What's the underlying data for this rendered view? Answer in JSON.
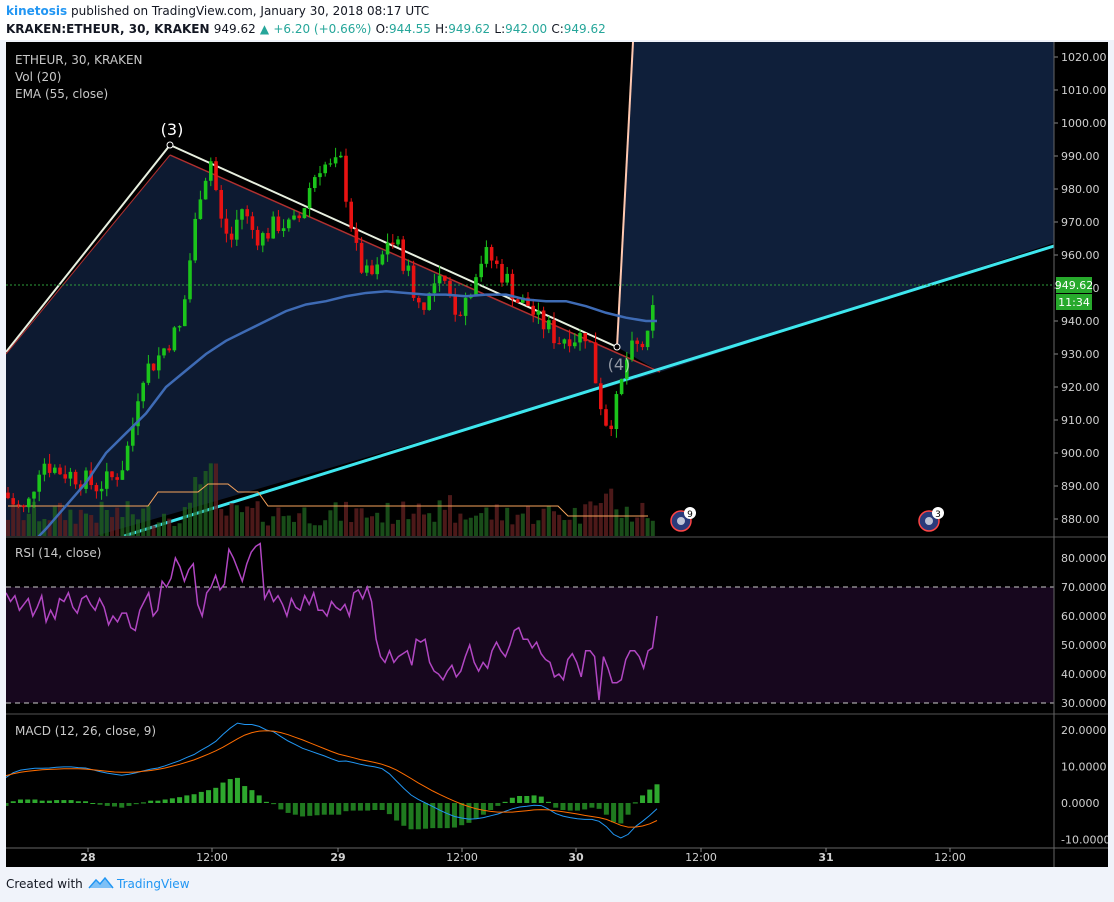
{
  "header": {
    "author": "kinetosis",
    "published": "published on TradingView.com, January 30, 2018 08:17 UTC",
    "symbol": "KRAKEN:ETHEUR, 30, KRAKEN",
    "last": "949.62",
    "change": "+6.20 (+0.66%)",
    "o_label": "O:",
    "o": "944.55",
    "h_label": "H:",
    "h": "949.62",
    "l_label": "L:",
    "l": "942.00",
    "c_label": "C:",
    "c": "949.62"
  },
  "legends": {
    "main": [
      "ETHEUR, 30, KRAKEN",
      "Vol (20)",
      "EMA (55, close)"
    ],
    "rsi": "RSI (14, close)",
    "macd": "MACD (12, 26, close, 9)"
  },
  "annotations": {
    "wave3": "(3)",
    "wave4": "(4)",
    "event1": "9",
    "event2": "3"
  },
  "price_tag": {
    "price": "949.62",
    "countdown": "11:34"
  },
  "footer": {
    "created": "Created with",
    "brand": "TradingView"
  },
  "colors": {
    "up": "#26a69a",
    "down": "#ef5350",
    "candle_up": "#1bc41b",
    "candle_down": "#e81212",
    "ema": "#3e6bb5",
    "rsi": "#b146c2",
    "macd": "#2196f3",
    "signal": "#ff6d00",
    "trendline": "#3ee6ee"
  },
  "chart_data": {
    "type": "candlestick",
    "x_ticks": [
      "28",
      "12:00",
      "29",
      "12:00",
      "30",
      "12:00",
      "31",
      "12:00"
    ],
    "price_axis": {
      "ticks": [
        880,
        890,
        900,
        910,
        920,
        930,
        940,
        950,
        960,
        970,
        980,
        990,
        1000,
        1010,
        1020
      ],
      "range": [
        873,
        1023
      ],
      "last": 949.62
    },
    "rsi": {
      "ticks": [
        "30.0000",
        "40.0000",
        "50.0000",
        "60.0000",
        "70.0000",
        "80.0000"
      ],
      "bands": [
        30,
        70
      ],
      "range": [
        28,
        86
      ],
      "values": [
        68,
        65,
        67,
        62,
        64,
        66,
        60,
        63,
        67,
        58,
        62,
        59,
        66,
        65,
        68,
        63,
        61,
        66,
        67,
        64,
        62,
        66,
        63,
        57,
        60,
        58,
        61,
        61,
        56,
        55,
        62,
        65,
        68,
        60,
        62,
        72,
        70,
        73,
        80,
        77,
        72,
        76,
        78,
        64,
        60,
        68,
        70,
        74,
        69,
        71,
        83,
        80,
        76,
        72,
        78,
        82,
        84,
        85,
        66,
        69,
        65,
        67,
        64,
        60,
        66,
        63,
        62,
        67,
        64,
        68,
        62,
        62,
        60,
        65,
        63,
        62,
        64,
        60,
        68,
        69,
        66,
        70,
        65,
        52,
        46,
        44,
        48,
        44,
        46,
        47,
        48,
        43,
        52,
        51,
        52,
        44,
        41,
        40,
        38,
        41,
        43,
        39,
        41,
        46,
        50,
        44,
        41,
        44,
        42,
        48,
        51,
        48,
        46,
        50,
        55,
        56,
        52,
        52,
        49,
        51,
        47,
        45,
        44,
        39,
        40,
        38,
        45,
        47,
        44,
        39,
        48,
        48,
        46,
        31,
        46,
        42,
        37,
        37,
        38,
        45,
        48,
        48,
        46,
        42,
        48,
        49,
        60
      ]
    },
    "macd": {
      "ticks": [
        "-10.0000",
        "0.0000",
        "10.0000",
        "20.0000"
      ],
      "range": [
        -11,
        24
      ],
      "macd": [
        7,
        8.3,
        9,
        9.3,
        9.5,
        9.5,
        9.6,
        9.8,
        9.9,
        9.9,
        9.7,
        9.6,
        9.1,
        8.6,
        8.2,
        7.9,
        7.6,
        7.9,
        8.3,
        8.8,
        9.3,
        9.6,
        10.2,
        10.9,
        11.6,
        12.5,
        13.3,
        14.5,
        15.6,
        16.9,
        18.8,
        20.5,
        21.9,
        21.5,
        21.5,
        21.0,
        20.0,
        19.5,
        18.2,
        17.0,
        16.0,
        15.0,
        14.3,
        13.6,
        12.9,
        12.1,
        11.4,
        11.5,
        11.1,
        10.6,
        10.2,
        9.9,
        9.4,
        8.0,
        6.0,
        4.0,
        2.2,
        1.0,
        0,
        -1.0,
        -2.0,
        -2.9,
        -3.7,
        -4.1,
        -4.4,
        -4.3,
        -4.0,
        -3.5,
        -3.0,
        -2.3,
        -1.6,
        -1.1,
        -0.9,
        -0.6,
        -0.7,
        -1.7,
        -2.9,
        -3.6,
        -4.0,
        -4.3,
        -4.5,
        -4.5,
        -5.0,
        -6.5,
        -8.6,
        -9.6,
        -8.6,
        -6.5,
        -5.0,
        -3.4,
        -1.6
      ],
      "signal": [
        7.5,
        8.0,
        8.4,
        8.7,
        8.9,
        9.1,
        9.2,
        9.3,
        9.4,
        9.4,
        9.4,
        9.3,
        9.1,
        8.9,
        8.7,
        8.5,
        8.4,
        8.4,
        8.5,
        8.7,
        8.9,
        9.2,
        9.6,
        10.1,
        10.6,
        11.2,
        11.8,
        12.6,
        13.4,
        14.3,
        15.3,
        16.4,
        17.6,
        18.6,
        19.3,
        19.7,
        19.8,
        19.7,
        19.3,
        18.7,
        18.0,
        17.3,
        16.5,
        15.7,
        14.9,
        14.1,
        13.4,
        12.9,
        12.4,
        11.9,
        11.5,
        11.1,
        10.6,
        9.9,
        9.0,
        7.9,
        6.7,
        5.5,
        4.4,
        3.3,
        2.3,
        1.4,
        0.5,
        -0.3,
        -1.0,
        -1.6,
        -2.0,
        -2.3,
        -2.5,
        -2.5,
        -2.5,
        -2.3,
        -2.1,
        -1.9,
        -1.8,
        -1.9,
        -2.1,
        -2.4,
        -2.7,
        -3.0,
        -3.4,
        -3.7,
        -4.0,
        -4.5,
        -5.3,
        -6.1,
        -6.6,
        -6.6,
        -6.3,
        -5.7,
        -4.8
      ]
    },
    "ema55": [
      [
        0,
        866
      ],
      [
        12,
        869
      ],
      [
        24,
        872
      ],
      [
        40,
        877
      ],
      [
        60,
        884
      ],
      [
        80,
        891
      ],
      [
        100,
        900
      ],
      [
        120,
        906
      ],
      [
        140,
        912
      ],
      [
        160,
        920
      ],
      [
        180,
        925
      ],
      [
        200,
        930
      ],
      [
        220,
        934
      ],
      [
        240,
        937
      ],
      [
        260,
        940
      ],
      [
        280,
        943
      ],
      [
        300,
        945
      ],
      [
        320,
        946
      ],
      [
        340,
        947.5
      ],
      [
        360,
        948.5
      ],
      [
        380,
        949
      ],
      [
        400,
        948.5
      ],
      [
        420,
        948
      ],
      [
        440,
        948
      ],
      [
        460,
        947.5
      ],
      [
        480,
        948
      ],
      [
        500,
        948
      ],
      [
        520,
        946.5
      ],
      [
        540,
        946
      ],
      [
        560,
        946
      ],
      [
        580,
        944.5
      ],
      [
        600,
        942.5
      ],
      [
        620,
        941
      ],
      [
        640,
        940
      ],
      [
        651,
        940
      ]
    ]
  }
}
